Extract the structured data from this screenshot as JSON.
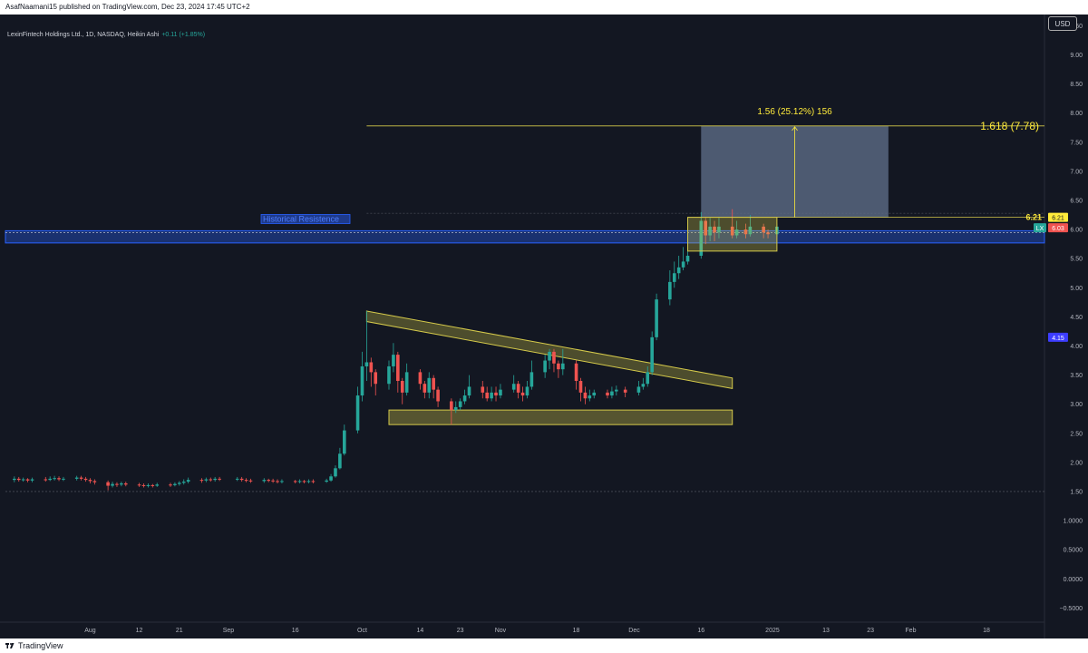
{
  "header": {
    "published_line": "AsafNaamani15 published on TradingView.com, Dec 23, 2024 17:45 UTC+2"
  },
  "footer": {
    "brand": "TradingView"
  },
  "toolbar": {
    "currency": "USD"
  },
  "legend": {
    "symbol": "LexinFintech Holdings Ltd., 1D, NASDAQ, Heikin Ashi",
    "change": "+0.11 (+1.85%)"
  },
  "colors": {
    "background": "#131722",
    "up": "#26a69a",
    "down": "#ef5350",
    "pattern": "#d4c94a",
    "resistance": "#2962ff",
    "target_box": "#5d6b86"
  },
  "chart_data": {
    "type": "candlestick",
    "y_axis": {
      "ticks": [
        -0.5,
        0.0,
        0.5,
        1.0,
        1.5,
        2.0,
        2.5,
        3.0,
        3.5,
        4.0,
        4.5,
        5.0,
        5.5,
        6.0,
        6.5,
        7.0,
        7.5,
        8.0,
        8.5,
        9.0,
        9.5
      ],
      "tick_labels": [
        "−0.5000",
        "0.0000",
        "0.5000",
        "1.0000",
        "1.50",
        "2.00",
        "2.50",
        "3.00",
        "3.50",
        "4.00",
        "4.50",
        "5.00",
        "5.50",
        "6.00",
        "6.50",
        "7.00",
        "7.50",
        "8.00",
        "8.50",
        "9.00",
        "9.50"
      ],
      "range": [
        -0.65,
        9.6
      ]
    },
    "x_axis": {
      "labels": [
        "Aug",
        "12",
        "21",
        "Sep",
        "16",
        "Oct",
        "14",
        "23",
        "Nov",
        "18",
        "Dec",
        "16",
        "2025",
        "13",
        "23",
        "Feb",
        "18"
      ],
      "dates": [
        "2024-08-01",
        "2024-08-12",
        "2024-08-21",
        "2024-09-01",
        "2024-09-16",
        "2024-10-01",
        "2024-10-14",
        "2024-10-23",
        "2024-11-01",
        "2024-11-18",
        "2024-12-01",
        "2024-12-16",
        "2025-01-01",
        "2025-01-13",
        "2025-01-23",
        "2025-02-01",
        "2025-02-18"
      ],
      "range": [
        "2024-07-13",
        "2025-03-03"
      ]
    },
    "candles": [
      {
        "d": "2024-07-15",
        "o": 1.7,
        "c": 1.72,
        "h": 1.76,
        "l": 1.66
      },
      {
        "d": "2024-07-16",
        "o": 1.72,
        "c": 1.7,
        "h": 1.75,
        "l": 1.67
      },
      {
        "d": "2024-07-17",
        "o": 1.7,
        "c": 1.71,
        "h": 1.74,
        "l": 1.67
      },
      {
        "d": "2024-07-18",
        "o": 1.71,
        "c": 1.69,
        "h": 1.73,
        "l": 1.66
      },
      {
        "d": "2024-07-19",
        "o": 1.69,
        "c": 1.71,
        "h": 1.74,
        "l": 1.66
      },
      {
        "d": "2024-07-22",
        "o": 1.71,
        "c": 1.7,
        "h": 1.75,
        "l": 1.67
      },
      {
        "d": "2024-07-23",
        "o": 1.7,
        "c": 1.72,
        "h": 1.76,
        "l": 1.68
      },
      {
        "d": "2024-07-24",
        "o": 1.72,
        "c": 1.73,
        "h": 1.77,
        "l": 1.69
      },
      {
        "d": "2024-07-25",
        "o": 1.73,
        "c": 1.71,
        "h": 1.76,
        "l": 1.68
      },
      {
        "d": "2024-07-26",
        "o": 1.71,
        "c": 1.72,
        "h": 1.75,
        "l": 1.68
      },
      {
        "d": "2024-07-29",
        "o": 1.72,
        "c": 1.74,
        "h": 1.77,
        "l": 1.69
      },
      {
        "d": "2024-07-30",
        "o": 1.74,
        "c": 1.72,
        "h": 1.77,
        "l": 1.69
      },
      {
        "d": "2024-07-31",
        "o": 1.72,
        "c": 1.7,
        "h": 1.75,
        "l": 1.67
      },
      {
        "d": "2024-08-01",
        "o": 1.7,
        "c": 1.68,
        "h": 1.73,
        "l": 1.64
      },
      {
        "d": "2024-08-02",
        "o": 1.68,
        "c": 1.66,
        "h": 1.71,
        "l": 1.62
      },
      {
        "d": "2024-08-05",
        "o": 1.66,
        "c": 1.6,
        "h": 1.69,
        "l": 1.52
      },
      {
        "d": "2024-08-06",
        "o": 1.6,
        "c": 1.63,
        "h": 1.67,
        "l": 1.57
      },
      {
        "d": "2024-08-07",
        "o": 1.63,
        "c": 1.62,
        "h": 1.66,
        "l": 1.58
      },
      {
        "d": "2024-08-08",
        "o": 1.62,
        "c": 1.64,
        "h": 1.67,
        "l": 1.59
      },
      {
        "d": "2024-08-09",
        "o": 1.64,
        "c": 1.62,
        "h": 1.67,
        "l": 1.59
      },
      {
        "d": "2024-08-12",
        "o": 1.62,
        "c": 1.61,
        "h": 1.65,
        "l": 1.58
      },
      {
        "d": "2024-08-13",
        "o": 1.61,
        "c": 1.6,
        "h": 1.64,
        "l": 1.57
      },
      {
        "d": "2024-08-14",
        "o": 1.6,
        "c": 1.61,
        "h": 1.64,
        "l": 1.57
      },
      {
        "d": "2024-08-15",
        "o": 1.61,
        "c": 1.6,
        "h": 1.63,
        "l": 1.57
      },
      {
        "d": "2024-08-16",
        "o": 1.6,
        "c": 1.62,
        "h": 1.65,
        "l": 1.58
      },
      {
        "d": "2024-08-19",
        "o": 1.62,
        "c": 1.61,
        "h": 1.65,
        "l": 1.58
      },
      {
        "d": "2024-08-20",
        "o": 1.61,
        "c": 1.63,
        "h": 1.66,
        "l": 1.59
      },
      {
        "d": "2024-08-21",
        "o": 1.63,
        "c": 1.65,
        "h": 1.68,
        "l": 1.6
      },
      {
        "d": "2024-08-22",
        "o": 1.65,
        "c": 1.67,
        "h": 1.71,
        "l": 1.62
      },
      {
        "d": "2024-08-23",
        "o": 1.67,
        "c": 1.7,
        "h": 1.74,
        "l": 1.64
      },
      {
        "d": "2024-08-26",
        "o": 1.7,
        "c": 1.69,
        "h": 1.73,
        "l": 1.65
      },
      {
        "d": "2024-08-27",
        "o": 1.69,
        "c": 1.71,
        "h": 1.74,
        "l": 1.66
      },
      {
        "d": "2024-08-28",
        "o": 1.71,
        "c": 1.7,
        "h": 1.74,
        "l": 1.67
      },
      {
        "d": "2024-08-29",
        "o": 1.7,
        "c": 1.72,
        "h": 1.75,
        "l": 1.67
      },
      {
        "d": "2024-08-30",
        "o": 1.72,
        "c": 1.71,
        "h": 1.75,
        "l": 1.68
      },
      {
        "d": "2024-09-03",
        "o": 1.71,
        "c": 1.72,
        "h": 1.75,
        "l": 1.68
      },
      {
        "d": "2024-09-04",
        "o": 1.72,
        "c": 1.7,
        "h": 1.75,
        "l": 1.67
      },
      {
        "d": "2024-09-05",
        "o": 1.7,
        "c": 1.69,
        "h": 1.73,
        "l": 1.66
      },
      {
        "d": "2024-09-06",
        "o": 1.69,
        "c": 1.68,
        "h": 1.72,
        "l": 1.65
      },
      {
        "d": "2024-09-09",
        "o": 1.68,
        "c": 1.7,
        "h": 1.73,
        "l": 1.65
      },
      {
        "d": "2024-09-10",
        "o": 1.7,
        "c": 1.69,
        "h": 1.72,
        "l": 1.66
      },
      {
        "d": "2024-09-11",
        "o": 1.69,
        "c": 1.68,
        "h": 1.72,
        "l": 1.65
      },
      {
        "d": "2024-09-12",
        "o": 1.68,
        "c": 1.67,
        "h": 1.71,
        "l": 1.64
      },
      {
        "d": "2024-09-13",
        "o": 1.67,
        "c": 1.68,
        "h": 1.71,
        "l": 1.64
      },
      {
        "d": "2024-09-16",
        "o": 1.68,
        "c": 1.67,
        "h": 1.7,
        "l": 1.64
      },
      {
        "d": "2024-09-17",
        "o": 1.67,
        "c": 1.68,
        "h": 1.71,
        "l": 1.64
      },
      {
        "d": "2024-09-18",
        "o": 1.68,
        "c": 1.67,
        "h": 1.7,
        "l": 1.64
      },
      {
        "d": "2024-09-19",
        "o": 1.67,
        "c": 1.68,
        "h": 1.71,
        "l": 1.64
      },
      {
        "d": "2024-09-20",
        "o": 1.68,
        "c": 1.67,
        "h": 1.71,
        "l": 1.64
      },
      {
        "d": "2024-09-23",
        "o": 1.67,
        "c": 1.69,
        "h": 1.72,
        "l": 1.65
      },
      {
        "d": "2024-09-24",
        "o": 1.69,
        "c": 1.76,
        "h": 1.8,
        "l": 1.67
      },
      {
        "d": "2024-09-25",
        "o": 1.76,
        "c": 1.9,
        "h": 1.95,
        "l": 1.74
      },
      {
        "d": "2024-09-26",
        "o": 1.9,
        "c": 2.15,
        "h": 2.25,
        "l": 1.88
      },
      {
        "d": "2024-09-27",
        "o": 2.15,
        "c": 2.55,
        "h": 2.65,
        "l": 2.12
      },
      {
        "d": "2024-09-30",
        "o": 2.55,
        "c": 3.15,
        "h": 3.3,
        "l": 2.5
      },
      {
        "d": "2024-10-01",
        "o": 3.15,
        "c": 3.65,
        "h": 3.9,
        "l": 3.05
      },
      {
        "d": "2024-10-02",
        "o": 3.65,
        "c": 3.72,
        "h": 4.6,
        "l": 3.4
      },
      {
        "d": "2024-10-03",
        "o": 3.72,
        "c": 3.55,
        "h": 3.8,
        "l": 3.3
      },
      {
        "d": "2024-10-04",
        "o": 3.55,
        "c": 3.35,
        "h": 3.6,
        "l": 3.15
      },
      {
        "d": "2024-10-07",
        "o": 3.35,
        "c": 3.65,
        "h": 3.75,
        "l": 3.25
      },
      {
        "d": "2024-10-08",
        "o": 3.65,
        "c": 3.85,
        "h": 4.05,
        "l": 3.55
      },
      {
        "d": "2024-10-09",
        "o": 3.85,
        "c": 3.4,
        "h": 3.9,
        "l": 3.2
      },
      {
        "d": "2024-10-10",
        "o": 3.4,
        "c": 3.2,
        "h": 3.45,
        "l": 3.0
      },
      {
        "d": "2024-10-11",
        "o": 3.2,
        "c": 3.55,
        "h": 3.7,
        "l": 3.15
      },
      {
        "d": "2024-10-14",
        "o": 3.55,
        "c": 3.35,
        "h": 3.6,
        "l": 3.25
      },
      {
        "d": "2024-10-15",
        "o": 3.35,
        "c": 3.2,
        "h": 3.4,
        "l": 3.1
      },
      {
        "d": "2024-10-16",
        "o": 3.2,
        "c": 3.45,
        "h": 3.55,
        "l": 3.1
      },
      {
        "d": "2024-10-17",
        "o": 3.45,
        "c": 3.25,
        "h": 3.5,
        "l": 3.1
      },
      {
        "d": "2024-10-18",
        "o": 3.25,
        "c": 3.05,
        "h": 3.3,
        "l": 2.95
      },
      {
        "d": "2024-10-21",
        "o": 3.05,
        "c": 2.9,
        "h": 3.1,
        "l": 2.65
      },
      {
        "d": "2024-10-22",
        "o": 2.9,
        "c": 2.95,
        "h": 3.05,
        "l": 2.85
      },
      {
        "d": "2024-10-23",
        "o": 2.95,
        "c": 3.05,
        "h": 3.1,
        "l": 2.9
      },
      {
        "d": "2024-10-24",
        "o": 3.05,
        "c": 3.15,
        "h": 3.25,
        "l": 3.0
      },
      {
        "d": "2024-10-25",
        "o": 3.15,
        "c": 3.3,
        "h": 3.5,
        "l": 3.1
      },
      {
        "d": "2024-10-28",
        "o": 3.3,
        "c": 3.2,
        "h": 3.4,
        "l": 3.1
      },
      {
        "d": "2024-10-29",
        "o": 3.2,
        "c": 3.1,
        "h": 3.3,
        "l": 3.05
      },
      {
        "d": "2024-10-30",
        "o": 3.1,
        "c": 3.2,
        "h": 3.3,
        "l": 3.05
      },
      {
        "d": "2024-10-31",
        "o": 3.2,
        "c": 3.15,
        "h": 3.3,
        "l": 3.05
      },
      {
        "d": "2024-11-01",
        "o": 3.15,
        "c": 3.25,
        "h": 3.35,
        "l": 3.1
      },
      {
        "d": "2024-11-04",
        "o": 3.25,
        "c": 3.35,
        "h": 3.5,
        "l": 3.2
      },
      {
        "d": "2024-11-05",
        "o": 3.35,
        "c": 3.2,
        "h": 3.4,
        "l": 3.1
      },
      {
        "d": "2024-11-06",
        "o": 3.2,
        "c": 3.15,
        "h": 3.3,
        "l": 3.05
      },
      {
        "d": "2024-11-07",
        "o": 3.15,
        "c": 3.3,
        "h": 3.4,
        "l": 3.1
      },
      {
        "d": "2024-11-08",
        "o": 3.3,
        "c": 3.55,
        "h": 3.75,
        "l": 3.25
      },
      {
        "d": "2024-11-11",
        "o": 3.55,
        "c": 3.75,
        "h": 3.85,
        "l": 3.45
      },
      {
        "d": "2024-11-12",
        "o": 3.75,
        "c": 3.9,
        "h": 3.95,
        "l": 3.6
      },
      {
        "d": "2024-11-13",
        "o": 3.9,
        "c": 3.7,
        "h": 3.95,
        "l": 3.55
      },
      {
        "d": "2024-11-14",
        "o": 3.7,
        "c": 3.6,
        "h": 3.75,
        "l": 3.45
      },
      {
        "d": "2024-11-15",
        "o": 3.6,
        "c": 3.7,
        "h": 3.95,
        "l": 3.5
      },
      {
        "d": "2024-11-18",
        "o": 3.7,
        "c": 3.4,
        "h": 3.75,
        "l": 3.25
      },
      {
        "d": "2024-11-19",
        "o": 3.4,
        "c": 3.2,
        "h": 3.45,
        "l": 3.05
      },
      {
        "d": "2024-11-20",
        "o": 3.2,
        "c": 3.1,
        "h": 3.3,
        "l": 3.0
      },
      {
        "d": "2024-11-21",
        "o": 3.1,
        "c": 3.15,
        "h": 3.25,
        "l": 3.05
      },
      {
        "d": "2024-11-22",
        "o": 3.15,
        "c": 3.2,
        "h": 3.25,
        "l": 3.1
      },
      {
        "d": "2024-11-25",
        "o": 3.2,
        "c": 3.15,
        "h": 3.25,
        "l": 3.1
      },
      {
        "d": "2024-11-26",
        "o": 3.15,
        "c": 3.22,
        "h": 3.3,
        "l": 3.1
      },
      {
        "d": "2024-11-27",
        "o": 3.22,
        "c": 3.25,
        "h": 3.32,
        "l": 3.15
      },
      {
        "d": "2024-11-29",
        "o": 3.25,
        "c": 3.2,
        "h": 3.3,
        "l": 3.12
      },
      {
        "d": "2024-12-02",
        "o": 3.2,
        "c": 3.3,
        "h": 3.4,
        "l": 3.15
      },
      {
        "d": "2024-12-03",
        "o": 3.3,
        "c": 3.35,
        "h": 3.45,
        "l": 3.25
      },
      {
        "d": "2024-12-04",
        "o": 3.35,
        "c": 3.55,
        "h": 3.65,
        "l": 3.3
      },
      {
        "d": "2024-12-05",
        "o": 3.55,
        "c": 4.15,
        "h": 4.25,
        "l": 3.5
      },
      {
        "d": "2024-12-06",
        "o": 4.15,
        "c": 4.8,
        "h": 4.9,
        "l": 4.1
      },
      {
        "d": "2024-12-09",
        "o": 4.8,
        "c": 5.1,
        "h": 5.3,
        "l": 4.7
      },
      {
        "d": "2024-12-10",
        "o": 5.1,
        "c": 5.25,
        "h": 5.45,
        "l": 5.0
      },
      {
        "d": "2024-12-11",
        "o": 5.25,
        "c": 5.35,
        "h": 5.55,
        "l": 5.15
      },
      {
        "d": "2024-12-12",
        "o": 5.35,
        "c": 5.45,
        "h": 5.7,
        "l": 5.3
      },
      {
        "d": "2024-12-13",
        "o": 5.45,
        "c": 5.55,
        "h": 5.7,
        "l": 5.4
      },
      {
        "d": "2024-12-16",
        "o": 5.55,
        "c": 6.15,
        "h": 6.3,
        "l": 5.5
      },
      {
        "d": "2024-12-17",
        "o": 6.15,
        "c": 5.9,
        "h": 6.2,
        "l": 5.75
      },
      {
        "d": "2024-12-18",
        "o": 5.9,
        "c": 6.05,
        "h": 6.2,
        "l": 5.8
      },
      {
        "d": "2024-12-19",
        "o": 6.05,
        "c": 5.95,
        "h": 6.15,
        "l": 5.8
      },
      {
        "d": "2024-12-20",
        "o": 5.95,
        "c": 6.05,
        "h": 6.2,
        "l": 5.85
      },
      {
        "d": "2024-12-23",
        "o": 6.05,
        "c": 5.9,
        "h": 6.35,
        "l": 5.85
      },
      {
        "d": "2024-12-24",
        "o": 5.9,
        "c": 6.0,
        "h": 6.15,
        "l": 5.85
      },
      {
        "d": "2024-12-26",
        "o": 6.0,
        "c": 5.92,
        "h": 6.1,
        "l": 5.85
      },
      {
        "d": "2024-12-27",
        "o": 5.92,
        "c": 6.05,
        "h": 6.25,
        "l": 5.88
      },
      {
        "d": "2024-12-30",
        "o": 6.05,
        "c": 5.95,
        "h": 6.1,
        "l": 5.85
      },
      {
        "d": "2024-12-31",
        "o": 5.95,
        "c": 5.92,
        "h": 6.0,
        "l": 5.85
      },
      {
        "d": "2025-01-02",
        "o": 5.92,
        "c": 6.05,
        "h": 6.1,
        "l": 5.88
      }
    ],
    "annotations": {
      "historical_resistance": {
        "label": "Historical Resistence",
        "from": "2024-07-13",
        "to": "2025-03-03",
        "y_low": 5.77,
        "y_high": 5.98
      },
      "resistance_dashed": {
        "y": 5.95
      },
      "horizontal_lines": [
        {
          "y": 1.5,
          "from": "2024-07-13",
          "to": "2025-03-03"
        },
        {
          "y": 6.28,
          "from": "2024-10-02",
          "to": "2025-03-03"
        }
      ],
      "triangle_top": {
        "x1": "2024-10-02",
        "y1": 4.6,
        "x2": "2024-12-23",
        "y2": 3.45,
        "thickness": 0.18
      },
      "triangle_base": {
        "from": "2024-10-07",
        "to": "2024-12-23",
        "y_low": 2.65,
        "y_high": 2.9
      },
      "consolidation_box": {
        "from": "2024-12-13",
        "to": "2025-01-02",
        "y_low": 5.63,
        "y_high": 6.21
      },
      "target_box": {
        "from": "2024-12-16",
        "to": "2025-01-27",
        "y_low": 6.21,
        "y_high": 7.78
      },
      "target_line": {
        "from": "2024-10-02",
        "to": "2025-03-03",
        "y": 7.78
      },
      "arrow": {
        "x": "2025-01-06",
        "y_from": 6.21,
        "y_to": 7.78
      },
      "measure_label": "1.56 (25.12%) 156",
      "fib_label": "1.618 (7.78)",
      "level_label": "6.21",
      "price_tags": [
        {
          "text": "6.21",
          "value": 6.21,
          "bg": "#ffeb3b",
          "fg": "#131722"
        },
        {
          "text": "6.03",
          "value": 6.03,
          "bg": "#ef5350",
          "fg": "#ffffff"
        },
        {
          "text": "4.15",
          "value": 4.15,
          "bg": "#3d3dff",
          "fg": "#ffffff"
        }
      ],
      "lx_tag": "LX"
    }
  }
}
